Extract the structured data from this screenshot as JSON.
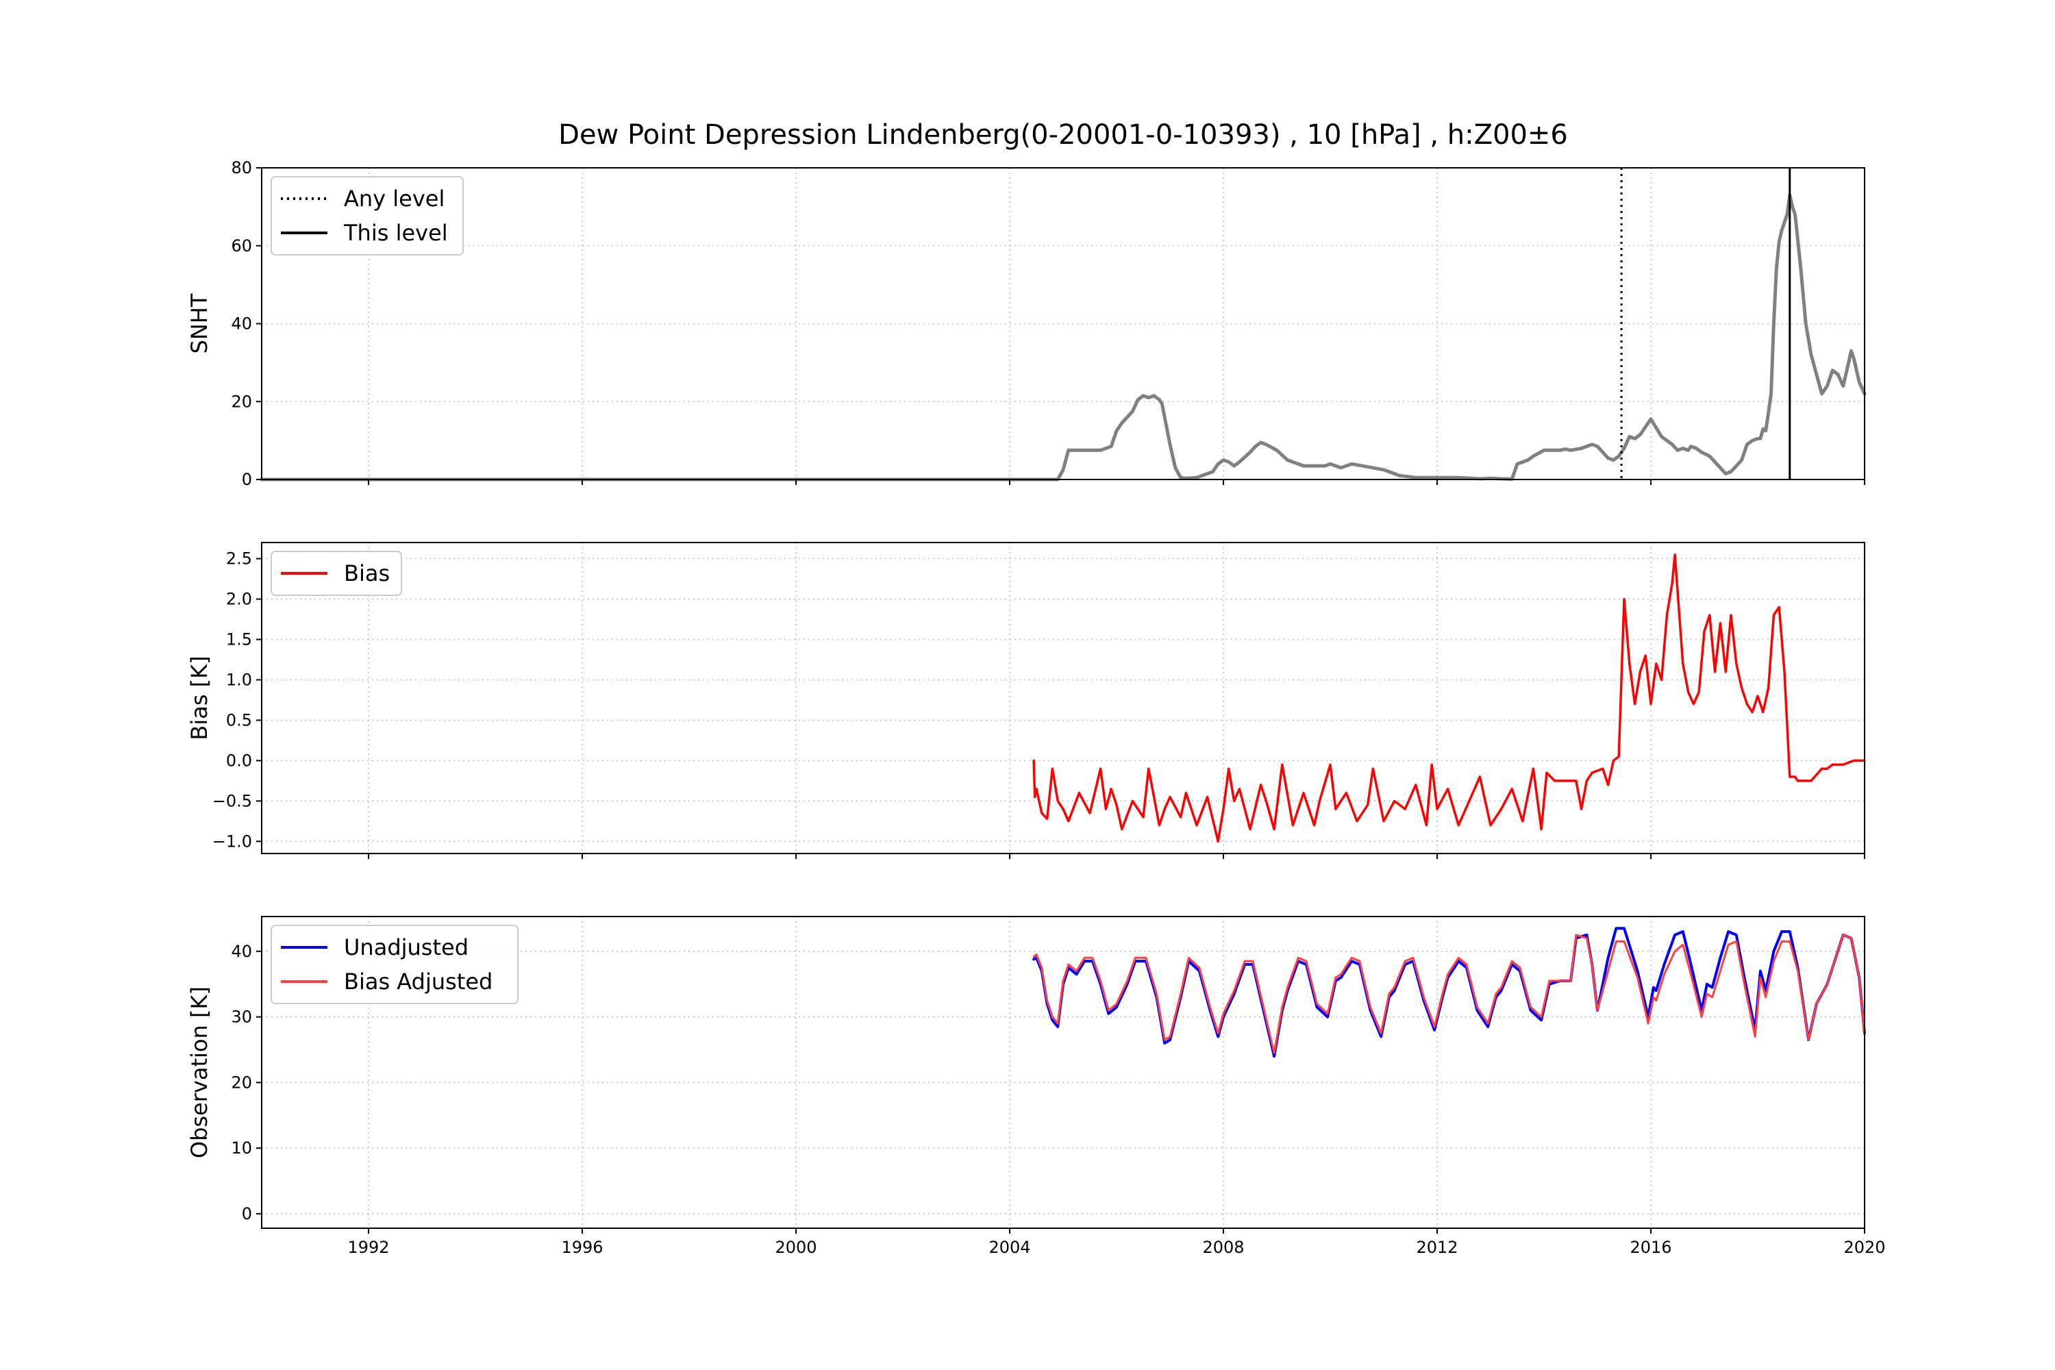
{
  "chart_data": [
    {
      "type": "line",
      "title": "Dew Point Depression Lindenberg(0-20001-0-10393) , 10 [hPa] , h:Z00±6",
      "ylabel": "SNHT",
      "xlim": [
        1990,
        2020
      ],
      "ylim": [
        0,
        80
      ],
      "yticks": [
        0,
        20,
        40,
        60,
        80
      ],
      "grid": true,
      "legend_placement": "upper-left",
      "legend": [
        "Any level",
        "This level"
      ],
      "series": [
        {
          "name": "SNHT",
          "color": "#808080",
          "x": [
            1990.0,
            2004.9,
            2005.0,
            2005.1,
            2005.4,
            2005.7,
            2005.9,
            2006.0,
            2006.1,
            2006.3,
            2006.4,
            2006.5,
            2006.6,
            2006.7,
            2006.8,
            2006.85,
            2006.9,
            2007.0,
            2007.1,
            2007.2,
            2007.3,
            2007.5,
            2007.8,
            2007.9,
            2008.0,
            2008.1,
            2008.2,
            2008.3,
            2008.5,
            2008.6,
            2008.7,
            2008.8,
            2009.0,
            2009.2,
            2009.5,
            2009.7,
            2009.9,
            2010.0,
            2010.2,
            2010.4,
            2010.6,
            2010.8,
            2011.0,
            2011.3,
            2011.6,
            2012.0,
            2012.4,
            2012.8,
            2013.0,
            2013.2,
            2013.4,
            2013.5,
            2013.7,
            2013.8,
            2014.0,
            2014.3,
            2014.4,
            2014.5,
            2014.7,
            2014.9,
            2015.0,
            2015.1,
            2015.2,
            2015.3,
            2015.4,
            2015.5,
            2015.6,
            2015.7,
            2015.8,
            2016.0,
            2016.2,
            2016.4,
            2016.5,
            2016.6,
            2016.7,
            2016.75,
            2016.85,
            2016.95,
            2017.1,
            2017.3,
            2017.4,
            2017.5,
            2017.7,
            2017.8,
            2017.9,
            2018.0,
            2018.05,
            2018.1,
            2018.15,
            2018.2,
            2018.25,
            2018.3,
            2018.35,
            2018.4,
            2018.45,
            2018.5,
            2018.55,
            2018.6,
            2018.65,
            2018.7,
            2018.8,
            2018.9,
            2019.0,
            2019.1,
            2019.2,
            2019.3,
            2019.4,
            2019.5,
            2019.6,
            2019.7,
            2019.75,
            2019.8,
            2019.9,
            2020.0
          ],
          "y": [
            0,
            0,
            2.5,
            7.5,
            7.5,
            7.5,
            8.5,
            12.5,
            14.5,
            17.5,
            20.5,
            21.5,
            21.0,
            21.5,
            20.5,
            19.5,
            16.0,
            9.0,
            3.0,
            0.5,
            0.3,
            0.5,
            2.0,
            4.0,
            5.0,
            4.5,
            3.5,
            4.5,
            7.0,
            8.5,
            9.5,
            9.0,
            7.5,
            5.0,
            3.5,
            3.5,
            3.5,
            4.0,
            3.0,
            4.0,
            3.5,
            3.0,
            2.5,
            1.0,
            0.5,
            0.5,
            0.5,
            0.2,
            0.3,
            0.2,
            0.1,
            4.0,
            5.0,
            6.0,
            7.5,
            7.5,
            7.8,
            7.5,
            8.0,
            9.0,
            8.5,
            7.0,
            5.5,
            5.0,
            6.0,
            8.0,
            11.0,
            10.5,
            11.5,
            15.5,
            11.0,
            9.0,
            7.5,
            8.0,
            7.5,
            8.5,
            8.0,
            7.0,
            6.0,
            3.0,
            1.5,
            2.0,
            5.0,
            9.0,
            10.0,
            10.5,
            10.5,
            13.0,
            12.5,
            17.0,
            22.0,
            40.0,
            54.0,
            61.0,
            64.0,
            66.0,
            68.0,
            73.0,
            70.0,
            68.0,
            55.0,
            40.0,
            32.0,
            27.0,
            22.0,
            24.0,
            28.0,
            27.0,
            24.0,
            30.0,
            33.0,
            31.0,
            25.0,
            22.0
          ]
        }
      ],
      "vlines": [
        {
          "name": "Any level",
          "x": 2015.45,
          "style": "dotted",
          "color": "#000000"
        },
        {
          "name": "This level",
          "x": 2018.6,
          "style": "solid",
          "color": "#000000"
        }
      ]
    },
    {
      "type": "line",
      "ylabel": "Bias [K]",
      "xlim": [
        1990,
        2020
      ],
      "ylim": [
        -1.15,
        2.7
      ],
      "yticks": [
        -1.0,
        -0.5,
        0.0,
        0.5,
        1.0,
        1.5,
        2.0,
        2.5
      ],
      "ytick_labels": [
        "−1.0",
        "−0.5",
        "0.0",
        "0.5",
        "1.0",
        "1.5",
        "2.0",
        "2.5"
      ],
      "grid": true,
      "legend_placement": "upper-left",
      "legend": [
        "Bias"
      ],
      "series": [
        {
          "name": "Bias",
          "color": "#ff0000",
          "x": [
            2004.45,
            2004.47,
            2004.5,
            2004.6,
            2004.7,
            2004.8,
            2004.9,
            2005.0,
            2005.1,
            2005.3,
            2005.5,
            2005.7,
            2005.8,
            2005.9,
            2006.0,
            2006.1,
            2006.3,
            2006.5,
            2006.6,
            2006.8,
            2006.9,
            2007.0,
            2007.2,
            2007.3,
            2007.5,
            2007.7,
            2007.9,
            2008.0,
            2008.1,
            2008.2,
            2008.3,
            2008.5,
            2008.7,
            2008.8,
            2008.95,
            2009.1,
            2009.3,
            2009.5,
            2009.7,
            2009.8,
            2010.0,
            2010.1,
            2010.3,
            2010.5,
            2010.7,
            2010.8,
            2011.0,
            2011.2,
            2011.4,
            2011.6,
            2011.8,
            2011.9,
            2012.0,
            2012.2,
            2012.4,
            2012.6,
            2012.8,
            2013.0,
            2013.2,
            2013.4,
            2013.6,
            2013.8,
            2013.95,
            2014.05,
            2014.2,
            2014.4,
            2014.6,
            2014.7,
            2014.8,
            2014.9,
            2015.1,
            2015.2,
            2015.3,
            2015.4,
            2015.5,
            2015.6,
            2015.7,
            2015.8,
            2015.9,
            2016.0,
            2016.1,
            2016.2,
            2016.3,
            2016.4,
            2016.45,
            2016.5,
            2016.6,
            2016.7,
            2016.8,
            2016.9,
            2017.0,
            2017.1,
            2017.2,
            2017.3,
            2017.4,
            2017.5,
            2017.6,
            2017.7,
            2017.8,
            2017.9,
            2018.0,
            2018.1,
            2018.2,
            2018.3,
            2018.4,
            2018.5,
            2018.6,
            2018.7,
            2018.75,
            2018.9,
            2019.0,
            2019.2,
            2019.3,
            2019.4,
            2019.6,
            2019.8,
            2020.0
          ],
          "y": [
            0.0,
            -0.45,
            -0.35,
            -0.65,
            -0.72,
            -0.1,
            -0.5,
            -0.6,
            -0.75,
            -0.4,
            -0.65,
            -0.1,
            -0.6,
            -0.35,
            -0.55,
            -0.85,
            -0.5,
            -0.7,
            -0.1,
            -0.8,
            -0.6,
            -0.45,
            -0.7,
            -0.4,
            -0.8,
            -0.45,
            -1.0,
            -0.6,
            -0.1,
            -0.5,
            -0.35,
            -0.85,
            -0.3,
            -0.5,
            -0.85,
            -0.05,
            -0.8,
            -0.4,
            -0.8,
            -0.5,
            -0.05,
            -0.6,
            -0.4,
            -0.75,
            -0.55,
            -0.1,
            -0.75,
            -0.5,
            -0.6,
            -0.3,
            -0.8,
            -0.05,
            -0.6,
            -0.35,
            -0.8,
            -0.5,
            -0.2,
            -0.8,
            -0.6,
            -0.35,
            -0.75,
            -0.1,
            -0.85,
            -0.15,
            -0.25,
            -0.25,
            -0.25,
            -0.6,
            -0.25,
            -0.15,
            -0.1,
            -0.3,
            0.0,
            0.05,
            2.0,
            1.2,
            0.7,
            1.1,
            1.3,
            0.7,
            1.2,
            1.0,
            1.8,
            2.2,
            2.55,
            2.1,
            1.2,
            0.85,
            0.7,
            0.85,
            1.6,
            1.8,
            1.1,
            1.7,
            1.1,
            1.8,
            1.2,
            0.9,
            0.7,
            0.6,
            0.8,
            0.6,
            0.9,
            1.8,
            1.9,
            1.1,
            -0.2,
            -0.2,
            -0.25,
            -0.25,
            -0.25,
            -0.1,
            -0.1,
            -0.05,
            -0.05,
            0.0,
            0.0
          ]
        }
      ]
    },
    {
      "type": "line",
      "ylabel": "Observation [K]",
      "xlim": [
        1990,
        2020
      ],
      "xticks": [
        1992,
        1996,
        2000,
        2004,
        2008,
        2012,
        2016,
        2020
      ],
      "xtick_labels": [
        "1992",
        "1996",
        "2000",
        "2004",
        "2008",
        "2012",
        "2016",
        "2020"
      ],
      "ylim": [
        -2.2,
        45.3
      ],
      "yticks": [
        0,
        10,
        20,
        30,
        40
      ],
      "grid": true,
      "legend_placement": "upper-left",
      "legend": [
        "Unadjusted",
        "Bias Adjusted"
      ],
      "series": [
        {
          "name": "Unadjusted",
          "color": "#0000ff",
          "x": [
            2004.45,
            2004.5,
            2004.6,
            2004.7,
            2004.8,
            2004.9,
            2005.0,
            2005.1,
            2005.25,
            2005.4,
            2005.55,
            2005.7,
            2005.85,
            2006.0,
            2006.2,
            2006.35,
            2006.55,
            2006.75,
            2006.9,
            2007.0,
            2007.2,
            2007.35,
            2007.55,
            2007.75,
            2007.9,
            2008.0,
            2008.2,
            2008.4,
            2008.55,
            2008.75,
            2008.95,
            2009.1,
            2009.2,
            2009.4,
            2009.55,
            2009.75,
            2009.95,
            2010.1,
            2010.2,
            2010.4,
            2010.55,
            2010.75,
            2010.95,
            2011.1,
            2011.2,
            2011.4,
            2011.55,
            2011.75,
            2011.95,
            2012.1,
            2012.2,
            2012.4,
            2012.55,
            2012.75,
            2012.95,
            2013.1,
            2013.2,
            2013.4,
            2013.55,
            2013.75,
            2013.95,
            2014.1,
            2014.3,
            2014.5,
            2014.6,
            2014.8,
            2014.9,
            2015.0,
            2015.2,
            2015.35,
            2015.5,
            2015.75,
            2015.95,
            2016.05,
            2016.1,
            2016.25,
            2016.45,
            2016.6,
            2016.75,
            2016.95,
            2017.05,
            2017.15,
            2017.3,
            2017.45,
            2017.6,
            2017.75,
            2017.95,
            2018.05,
            2018.15,
            2018.3,
            2018.45,
            2018.6,
            2018.75,
            2018.95,
            2019.1,
            2019.3,
            2019.5,
            2019.6,
            2019.75,
            2019.9,
            2020.0
          ],
          "y": [
            38.8,
            39.0,
            37.0,
            32.0,
            29.5,
            28.5,
            35.0,
            37.5,
            36.5,
            38.5,
            38.5,
            35.0,
            30.5,
            31.5,
            35.0,
            38.5,
            38.5,
            33.0,
            26.0,
            26.5,
            33.0,
            38.5,
            37.0,
            31.0,
            27.0,
            30.0,
            33.5,
            38.0,
            38.0,
            31.0,
            24.0,
            31.0,
            34.0,
            38.5,
            38.0,
            31.5,
            30.0,
            35.5,
            36.0,
            38.5,
            38.0,
            31.0,
            27.0,
            33.0,
            34.0,
            38.0,
            38.5,
            32.5,
            28.0,
            33.0,
            36.0,
            38.5,
            37.5,
            31.0,
            28.5,
            33.0,
            34.0,
            38.0,
            37.0,
            31.0,
            29.5,
            35.0,
            35.5,
            35.5,
            42.0,
            42.5,
            38.0,
            31.0,
            39.0,
            43.5,
            43.5,
            37.0,
            30.0,
            34.5,
            34.0,
            38.0,
            42.5,
            43.0,
            38.0,
            31.0,
            35.0,
            34.5,
            39.0,
            43.0,
            42.5,
            36.0,
            28.0,
            37.0,
            34.0,
            40.0,
            43.0,
            43.0,
            37.5,
            26.5,
            32.0,
            35.0,
            40.0,
            42.5,
            42.0,
            36.0,
            27.5
          ]
        },
        {
          "name": "Bias Adjusted",
          "color": "#ff4040",
          "x": [
            2004.45,
            2004.5,
            2004.6,
            2004.7,
            2004.8,
            2004.9,
            2005.0,
            2005.1,
            2005.25,
            2005.4,
            2005.55,
            2005.7,
            2005.85,
            2006.0,
            2006.2,
            2006.35,
            2006.55,
            2006.75,
            2006.9,
            2007.0,
            2007.2,
            2007.35,
            2007.55,
            2007.75,
            2007.9,
            2008.0,
            2008.2,
            2008.4,
            2008.55,
            2008.75,
            2008.95,
            2009.1,
            2009.2,
            2009.4,
            2009.55,
            2009.75,
            2009.95,
            2010.1,
            2010.2,
            2010.4,
            2010.55,
            2010.75,
            2010.95,
            2011.1,
            2011.2,
            2011.4,
            2011.55,
            2011.75,
            2011.95,
            2012.1,
            2012.2,
            2012.4,
            2012.55,
            2012.75,
            2012.95,
            2013.1,
            2013.2,
            2013.4,
            2013.55,
            2013.75,
            2013.95,
            2014.1,
            2014.3,
            2014.5,
            2014.6,
            2014.8,
            2014.9,
            2015.0,
            2015.2,
            2015.35,
            2015.5,
            2015.75,
            2015.95,
            2016.05,
            2016.1,
            2016.25,
            2016.45,
            2016.6,
            2016.75,
            2016.95,
            2017.05,
            2017.15,
            2017.3,
            2017.45,
            2017.6,
            2017.75,
            2017.95,
            2018.05,
            2018.15,
            2018.3,
            2018.45,
            2018.6,
            2018.75,
            2018.95,
            2019.1,
            2019.3,
            2019.5,
            2019.6,
            2019.75,
            2019.9,
            2020.0
          ],
          "y": [
            39.2,
            39.5,
            37.5,
            32.5,
            30.0,
            29.0,
            35.5,
            38.0,
            37.0,
            39.0,
            39.0,
            35.5,
            31.0,
            32.0,
            35.5,
            39.0,
            39.0,
            33.5,
            26.5,
            27.0,
            33.5,
            39.0,
            37.5,
            31.5,
            27.5,
            30.5,
            34.0,
            38.5,
            38.5,
            31.5,
            24.5,
            31.5,
            34.5,
            39.0,
            38.5,
            32.0,
            30.5,
            36.0,
            36.5,
            39.0,
            38.5,
            31.5,
            27.5,
            33.5,
            34.5,
            38.5,
            39.0,
            33.0,
            28.5,
            33.5,
            36.5,
            39.0,
            38.0,
            31.5,
            29.0,
            33.5,
            34.5,
            38.5,
            37.5,
            31.5,
            30.0,
            35.5,
            35.5,
            35.5,
            42.5,
            42.0,
            38.0,
            31.0,
            37.0,
            41.5,
            41.5,
            36.0,
            29.0,
            33.0,
            32.5,
            36.5,
            40.0,
            41.0,
            36.5,
            30.0,
            33.5,
            33.0,
            37.0,
            41.0,
            41.5,
            35.0,
            27.0,
            36.0,
            33.0,
            38.5,
            41.5,
            41.5,
            37.0,
            26.5,
            32.0,
            35.0,
            40.0,
            42.5,
            42.0,
            36.0,
            27.5
          ]
        }
      ]
    }
  ]
}
